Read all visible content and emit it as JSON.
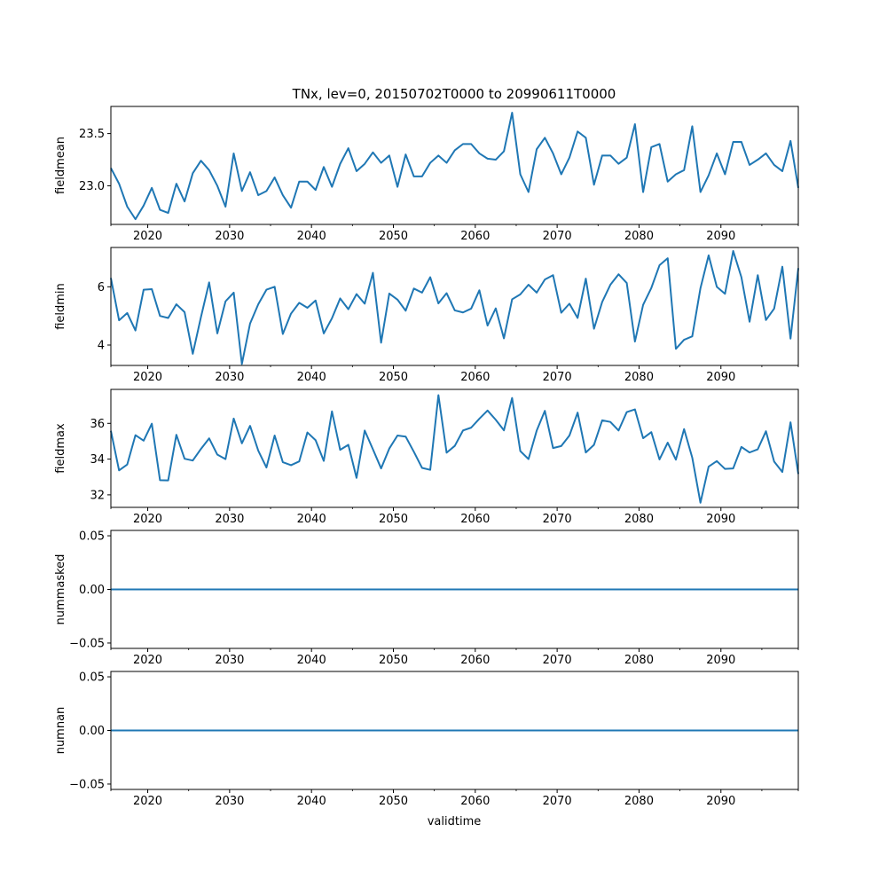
{
  "chart_data": {
    "type": "line",
    "title": "TNx, lev=0, 20150702T0000 to 20990611T0000",
    "xlabel": "validtime",
    "line_color": "#1f77b4",
    "xlim": [
      2015.5,
      2099.45
    ],
    "x_major_ticks": [
      2020,
      2030,
      2040,
      2050,
      2060,
      2070,
      2080,
      2090
    ],
    "x_major_tick_labels": [
      "2020",
      "2030",
      "2040",
      "2050",
      "2060",
      "2070",
      "2080",
      "2090"
    ],
    "x": [
      2015.5,
      2016.5,
      2017.5,
      2018.5,
      2019.5,
      2020.5,
      2021.5,
      2022.5,
      2023.5,
      2024.5,
      2025.5,
      2026.5,
      2027.5,
      2028.5,
      2029.5,
      2030.5,
      2031.5,
      2032.5,
      2033.5,
      2034.5,
      2035.5,
      2036.5,
      2037.5,
      2038.5,
      2039.5,
      2040.5,
      2041.5,
      2042.5,
      2043.5,
      2044.5,
      2045.5,
      2046.5,
      2047.5,
      2048.5,
      2049.5,
      2050.5,
      2051.5,
      2052.5,
      2053.5,
      2054.5,
      2055.5,
      2056.5,
      2057.5,
      2058.5,
      2059.5,
      2060.5,
      2061.5,
      2062.5,
      2063.5,
      2064.5,
      2065.5,
      2066.5,
      2067.5,
      2068.5,
      2069.5,
      2070.5,
      2071.5,
      2072.5,
      2073.5,
      2074.5,
      2075.5,
      2076.5,
      2077.5,
      2078.5,
      2079.5,
      2080.5,
      2081.5,
      2082.5,
      2083.5,
      2084.5,
      2085.5,
      2086.5,
      2087.5,
      2088.5,
      2089.5,
      2090.5,
      2091.5,
      2092.5,
      2093.5,
      2094.5,
      2095.5,
      2096.5,
      2097.5,
      2098.5,
      2099.45
    ],
    "panels": [
      {
        "name": "fieldmean",
        "ylabel": "fieldmean",
        "ylim": [
          22.63,
          23.76
        ],
        "y_ticks": [
          23.0,
          23.5
        ],
        "y_tick_labels": [
          "23.0",
          "23.5"
        ],
        "values": [
          23.17,
          23.02,
          22.8,
          22.68,
          22.81,
          22.98,
          22.77,
          22.74,
          23.02,
          22.85,
          23.12,
          23.24,
          23.15,
          23.0,
          22.8,
          23.31,
          22.95,
          23.13,
          22.91,
          22.95,
          23.08,
          22.91,
          22.79,
          23.04,
          23.04,
          22.96,
          23.18,
          22.99,
          23.21,
          23.36,
          23.14,
          23.21,
          23.32,
          23.22,
          23.29,
          22.99,
          23.3,
          23.09,
          23.09,
          23.22,
          23.29,
          23.22,
          23.34,
          23.4,
          23.4,
          23.31,
          23.26,
          23.25,
          23.33,
          23.7,
          23.11,
          22.94,
          23.35,
          23.46,
          23.31,
          23.11,
          23.27,
          23.52,
          23.46,
          23.01,
          23.29,
          23.29,
          23.21,
          23.27,
          23.59,
          22.94,
          23.37,
          23.4,
          23.04,
          23.11,
          23.15,
          23.57,
          22.94,
          23.1,
          23.31,
          23.11,
          23.42,
          23.42,
          23.2,
          23.25,
          23.31,
          23.2,
          23.14,
          23.43,
          22.98
        ]
      },
      {
        "name": "fieldmin",
        "ylabel": "fieldmin",
        "ylim": [
          3.3,
          7.35
        ],
        "y_ticks": [
          4,
          6
        ],
        "y_tick_labels": [
          "4",
          "6"
        ],
        "values": [
          6.3,
          4.85,
          5.1,
          4.5,
          5.9,
          5.92,
          5.0,
          4.93,
          5.4,
          5.13,
          3.7,
          4.96,
          6.15,
          4.4,
          5.5,
          5.8,
          3.35,
          4.74,
          5.4,
          5.9,
          6.0,
          4.38,
          5.08,
          5.45,
          5.28,
          5.53,
          4.4,
          4.92,
          5.6,
          5.23,
          5.75,
          5.42,
          6.48,
          4.08,
          5.77,
          5.56,
          5.18,
          5.94,
          5.8,
          6.33,
          5.43,
          5.78,
          5.19,
          5.12,
          5.25,
          5.88,
          4.67,
          5.26,
          4.23,
          5.57,
          5.74,
          6.07,
          5.8,
          6.25,
          6.4,
          5.11,
          5.42,
          4.93,
          6.28,
          4.56,
          5.48,
          6.07,
          6.43,
          6.13,
          4.12,
          5.38,
          5.96,
          6.74,
          6.98,
          3.87,
          4.18,
          4.3,
          5.95,
          7.08,
          6.0,
          5.76,
          7.23,
          6.33,
          4.8,
          6.4,
          4.86,
          5.25,
          6.69,
          4.22,
          6.64
        ]
      },
      {
        "name": "fieldmax",
        "ylabel": "fieldmax",
        "ylim": [
          31.3,
          37.9
        ],
        "y_ticks": [
          32,
          34,
          36
        ],
        "y_tick_labels": [
          "32",
          "34",
          "36"
        ],
        "values": [
          35.58,
          33.37,
          33.7,
          35.34,
          35.03,
          35.98,
          32.82,
          32.81,
          35.36,
          34.02,
          33.92,
          34.57,
          35.16,
          34.25,
          34.0,
          36.27,
          34.88,
          35.86,
          34.47,
          33.53,
          35.32,
          33.83,
          33.66,
          33.87,
          35.49,
          35.06,
          33.9,
          36.67,
          34.52,
          34.8,
          32.95,
          35.6,
          34.55,
          33.48,
          34.59,
          35.32,
          35.26,
          34.41,
          33.51,
          33.4,
          37.58,
          34.36,
          34.74,
          35.6,
          35.76,
          36.26,
          36.72,
          36.2,
          35.61,
          37.42,
          34.45,
          34.0,
          35.59,
          36.7,
          34.62,
          34.73,
          35.32,
          36.6,
          34.37,
          34.8,
          36.17,
          36.08,
          35.6,
          36.63,
          36.78,
          35.17,
          35.51,
          33.98,
          34.92,
          33.97,
          35.68,
          34.08,
          31.56,
          33.58,
          33.89,
          33.45,
          33.48,
          34.68,
          34.37,
          34.55,
          35.56,
          33.86,
          33.28,
          36.06,
          33.17
        ]
      },
      {
        "name": "nummasked",
        "ylabel": "nummasked",
        "ylim": [
          -0.055,
          0.055
        ],
        "y_ticks": [
          -0.05,
          0.0,
          0.05
        ],
        "y_tick_labels": [
          "−0.05",
          "0.00",
          "0.05"
        ],
        "values": [
          0,
          0,
          0,
          0,
          0,
          0,
          0,
          0,
          0,
          0,
          0,
          0,
          0,
          0,
          0,
          0,
          0,
          0,
          0,
          0,
          0,
          0,
          0,
          0,
          0,
          0,
          0,
          0,
          0,
          0,
          0,
          0,
          0,
          0,
          0,
          0,
          0,
          0,
          0,
          0,
          0,
          0,
          0,
          0,
          0,
          0,
          0,
          0,
          0,
          0,
          0,
          0,
          0,
          0,
          0,
          0,
          0,
          0,
          0,
          0,
          0,
          0,
          0,
          0,
          0,
          0,
          0,
          0,
          0,
          0,
          0,
          0,
          0,
          0,
          0,
          0,
          0,
          0,
          0,
          0,
          0,
          0,
          0,
          0,
          0
        ]
      },
      {
        "name": "numnan",
        "ylabel": "numnan",
        "ylim": [
          -0.055,
          0.055
        ],
        "y_ticks": [
          -0.05,
          0.0,
          0.05
        ],
        "y_tick_labels": [
          "−0.05",
          "0.00",
          "0.05"
        ],
        "values": [
          0,
          0,
          0,
          0,
          0,
          0,
          0,
          0,
          0,
          0,
          0,
          0,
          0,
          0,
          0,
          0,
          0,
          0,
          0,
          0,
          0,
          0,
          0,
          0,
          0,
          0,
          0,
          0,
          0,
          0,
          0,
          0,
          0,
          0,
          0,
          0,
          0,
          0,
          0,
          0,
          0,
          0,
          0,
          0,
          0,
          0,
          0,
          0,
          0,
          0,
          0,
          0,
          0,
          0,
          0,
          0,
          0,
          0,
          0,
          0,
          0,
          0,
          0,
          0,
          0,
          0,
          0,
          0,
          0,
          0,
          0,
          0,
          0,
          0,
          0,
          0,
          0,
          0,
          0,
          0,
          0,
          0,
          0,
          0,
          0
        ]
      }
    ]
  }
}
